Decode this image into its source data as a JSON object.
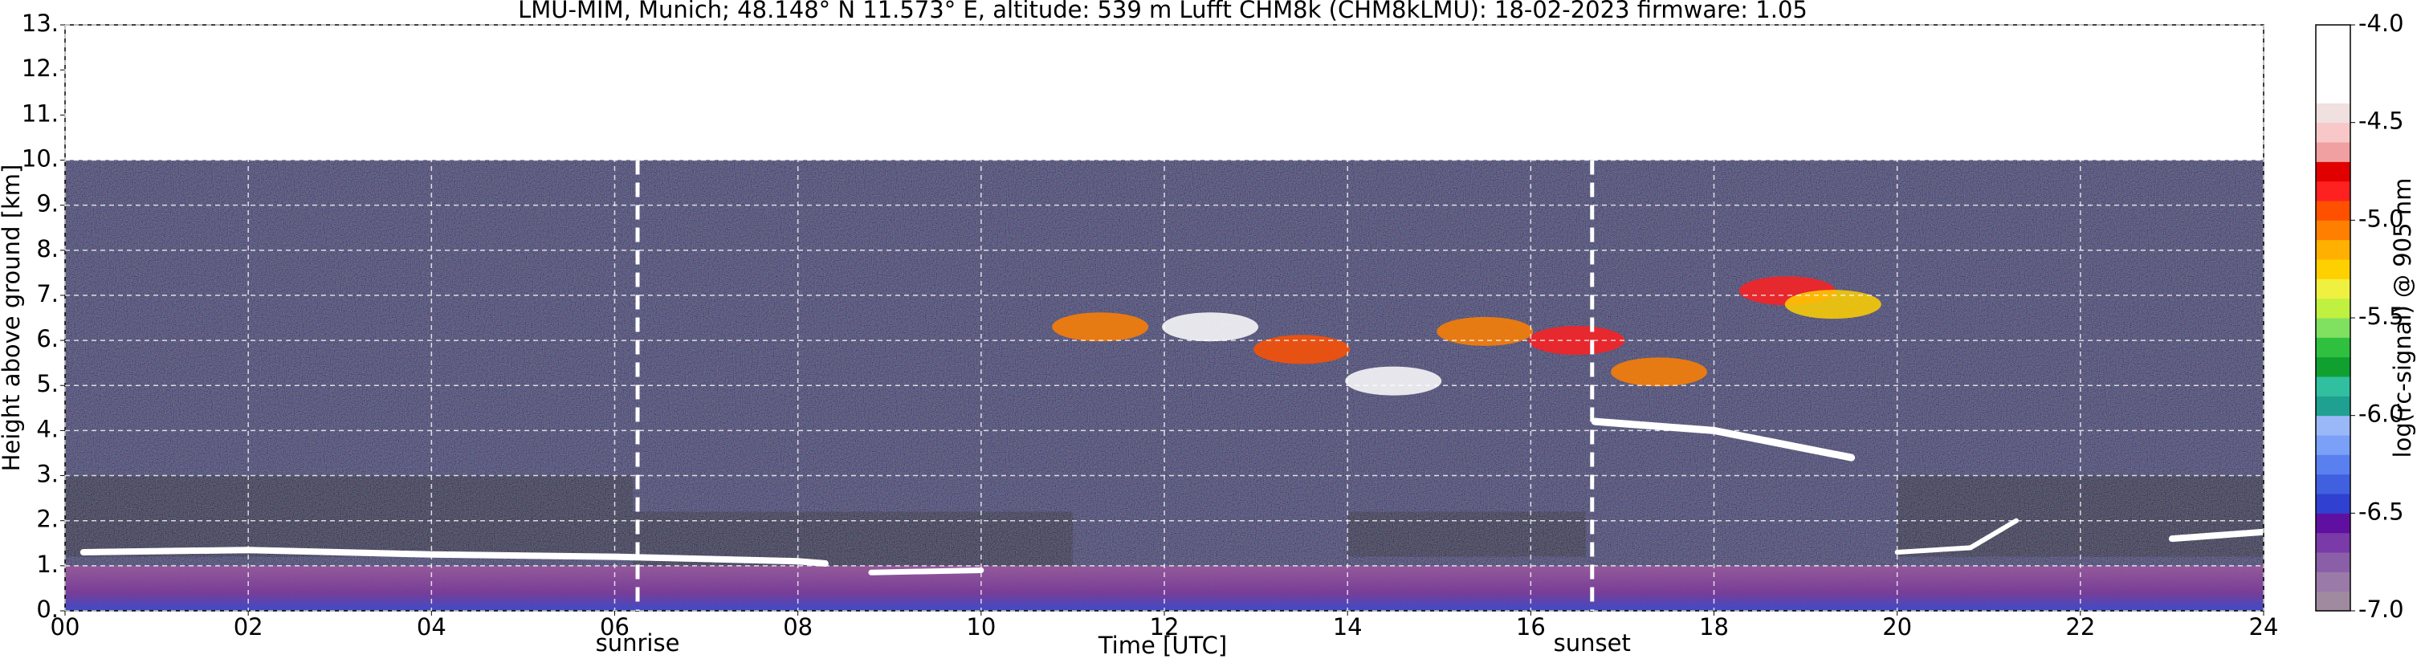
{
  "chart_data": {
    "type": "heatmap",
    "title": "LMU-MIM, Munich; 48.148° N 11.573° E, altitude: 539 m    Lufft CHM8k (CHM8kLMU): 18-02-2023    firmware: 1.05",
    "xlabel": "Time [UTC]",
    "ylabel": "Height above ground [km]",
    "xlim": [
      0,
      24
    ],
    "xticks": [
      {
        "value": 0,
        "label": "00"
      },
      {
        "value": 2,
        "label": "02"
      },
      {
        "value": 4,
        "label": "04"
      },
      {
        "value": 6,
        "label": "06"
      },
      {
        "value": 8,
        "label": "08"
      },
      10,
      12,
      14,
      16,
      18,
      20,
      22,
      24
    ],
    "ylim": [
      0,
      13
    ],
    "yticks": [
      {
        "value": 0,
        "label": "0."
      },
      {
        "value": 1,
        "label": "1."
      },
      {
        "value": 2,
        "label": "2."
      },
      {
        "value": 3,
        "label": "3."
      },
      {
        "value": 4,
        "label": "4."
      },
      {
        "value": 5,
        "label": "5."
      },
      {
        "value": 6,
        "label": "6."
      },
      {
        "value": 7,
        "label": "7."
      },
      {
        "value": 8,
        "label": "8."
      },
      {
        "value": 9,
        "label": "9."
      },
      {
        "value": 10,
        "label": "10."
      },
      {
        "value": 11,
        "label": "11."
      },
      {
        "value": 12,
        "label": "12."
      },
      {
        "value": 13,
        "label": "13."
      }
    ],
    "grid": true,
    "annotations": [
      {
        "text": "sunrise",
        "x": 6.25
      },
      {
        "text": "sunset",
        "x": 16.67
      }
    ],
    "colorbar": {
      "label": "log(rc-signal) @ 905 nm",
      "lim": [
        -7,
        -4
      ],
      "ticks": [
        {
          "value": -7,
          "label": "-7.0"
        },
        -6.5,
        {
          "value": -6,
          "label": "-6.0"
        },
        -5.5,
        {
          "value": -5,
          "label": "-5.0"
        },
        -4.5,
        {
          "value": -4,
          "label": "-4.0"
        }
      ],
      "colors": [
        "#a08aa0",
        "#9a7aa8",
        "#8a5fa8",
        "#7a3aa8",
        "#6010a0",
        "#3040d0",
        "#4060e0",
        "#5a80f0",
        "#7aa0f8",
        "#9ab8f8",
        "#20a090",
        "#30c0a0",
        "#10a030",
        "#30c040",
        "#80e060",
        "#c0f040",
        "#f0f040",
        "#ffd000",
        "#ffb000",
        "#ff8000",
        "#ff5000",
        "#ff2020",
        "#e00000",
        "#f0a0a0",
        "#f8c8c8",
        "#f0e0e0",
        "#ffffff",
        "#ffffff",
        "#ffffff",
        "#ffffff"
      ]
    }
  }
}
